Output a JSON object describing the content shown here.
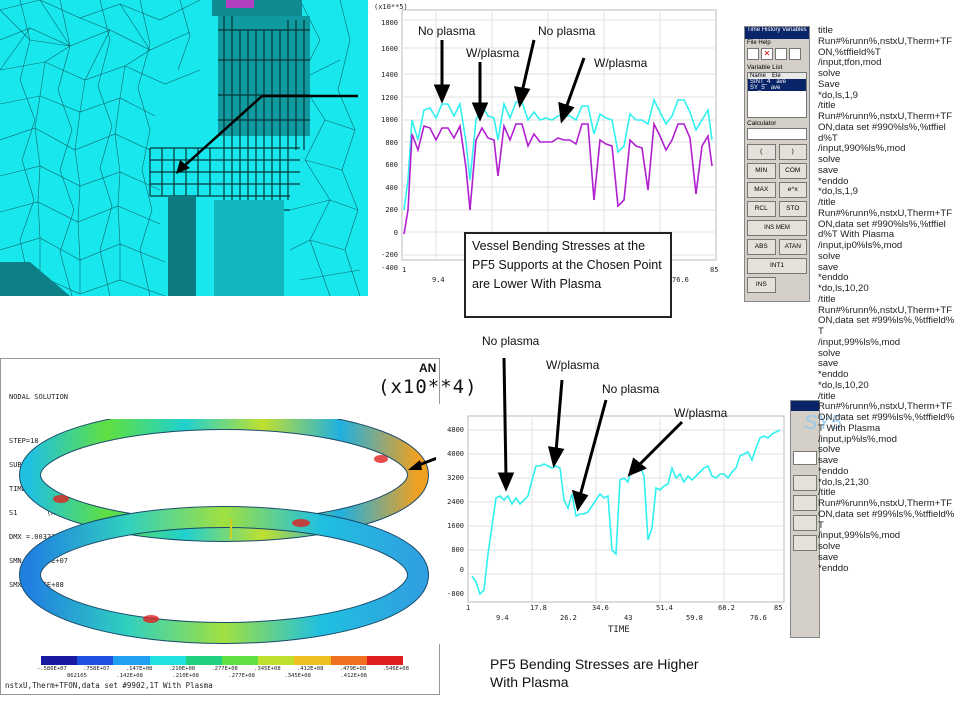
{
  "top_chart": {
    "multiplier": "(x10**5)",
    "y_ticks": [
      "1800",
      "1600",
      "1400",
      "1200",
      "1000",
      "800",
      "600",
      "400",
      "200",
      "0",
      "-200",
      "-400"
    ],
    "x_ticks": [
      "1",
      "9.4",
      "85",
      "76.6"
    ]
  },
  "top_annotations": {
    "no_plasma_1": "No plasma",
    "no_plasma_2": "No plasma",
    "w_plasma_1": "W/plasma",
    "w_plasma_2": "W/plasma"
  },
  "callout": "Vessel Bending Stresses at the PF5 Supports  at the Chosen Point are Lower With Plasma",
  "ansys": {
    "header_lines": [
      "NODAL SOLUTION",
      "STEP=18",
      "SUB =1",
      "TIME=18",
      "S1       (AVG)",
      "DMX =.003236",
      "SMN =-.586E+07",
      "SMX =.546E+08"
    ],
    "legend_top": [
      "-.586E+07",
      ".758E+07",
      ".147E+08",
      ".210E+08",
      ".277E+08",
      ".345E+08",
      ".412E+08",
      ".479E+08",
      ".546E+08"
    ],
    "legend_bottom": [
      "862165",
      ".142E+08",
      ".210E+08",
      ".277E+08",
      ".345E+08",
      ".412E+08"
    ],
    "bottom_text": "nstxU,Therm+TFON,data set #9902,1T With Plasma",
    "legend_colors": [
      "#1a1aa0",
      "#2050e0",
      "#20a0f0",
      "#20e0e0",
      "#20d080",
      "#60e040",
      "#c0e030",
      "#f0c020",
      "#f07020",
      "#e02020"
    ]
  },
  "bottom_multiplier": "(x10**4)",
  "bottom_chart": {
    "y_ticks": [
      "4800",
      "4000",
      "3200",
      "2400",
      "1600",
      "800",
      "0",
      "-800"
    ],
    "x_ticks_row1": [
      "1",
      "17.8",
      "34.6",
      "51.4",
      "68.2",
      "85"
    ],
    "x_ticks_row2": [
      "9.4",
      "26.2",
      "43",
      "59.8",
      "76.6"
    ],
    "x_label": "TIME"
  },
  "bottom_annotations": {
    "no_plasma_1": "No plasma",
    "w_plasma_1": "W/plasma",
    "no_plasma_2": "No plasma",
    "w_plasma_2": "W/plasma"
  },
  "caption_bottom": "PF5 Bending Stresses are Higher With Plasma",
  "time_history": {
    "title": "Time History Variables",
    "menu": [
      "File",
      "Help"
    ],
    "variable_list_label": "Variable List",
    "columns": [
      "Name",
      "Ele"
    ],
    "rows": [
      {
        "name": "SINT_4",
        "value": "ave"
      },
      {
        "name": "SY_5",
        "value": "ave"
      }
    ],
    "calculator_label": "Calculator",
    "buttons": [
      "(",
      ")",
      "MIN",
      "COM",
      "MAX",
      "e^x",
      "RCL",
      "STO",
      "INS MEM",
      "ABS",
      "ATAN",
      "INT1",
      "INS"
    ]
  },
  "script": "title\nRun#%runn%,nstxU,Therm+TFON,%tffield%T\n/input,tfon,mod\nsolve\nSave\n*do,ls,1,9\n/title\nRun#%runn%,nstxU,Therm+TFON,data set #990%ls%,%tffield%T\n/input,990%ls%,mod\nsolve\nsave\n*enddo\n*do,ls,1,9\n/title\nRun#%runn%,nstxU,Therm+TFON,data set #990%ls%,%tffield%T With Plasma\n/input,ip0%ls%,mod\nsolve\nsave\n*enddo\n*do,ls,10,20\n/title\nRun#%runn%,nstxU,Therm+TFON,data set #99%ls%,%tffield%T\n/input,99%ls%,mod\nsolve\nsave\n*enddo\n*do,ls,10,20\n/title\nRun#%runn%,nstxU,Therm+TFON,data set #99%ls%,%tffield%T With Plasma\n/input,ip%ls%,mod\nsolve\nsave\n*enddo\n*do,ls,21,30\n/title\nRun#%runn%,nstxU,Therm+TFON,data set #99%ls%,%tffield%T\n/input,99%ls%,mod\nsolve\nsave\n*enddo",
  "watermark": "SY5"
}
